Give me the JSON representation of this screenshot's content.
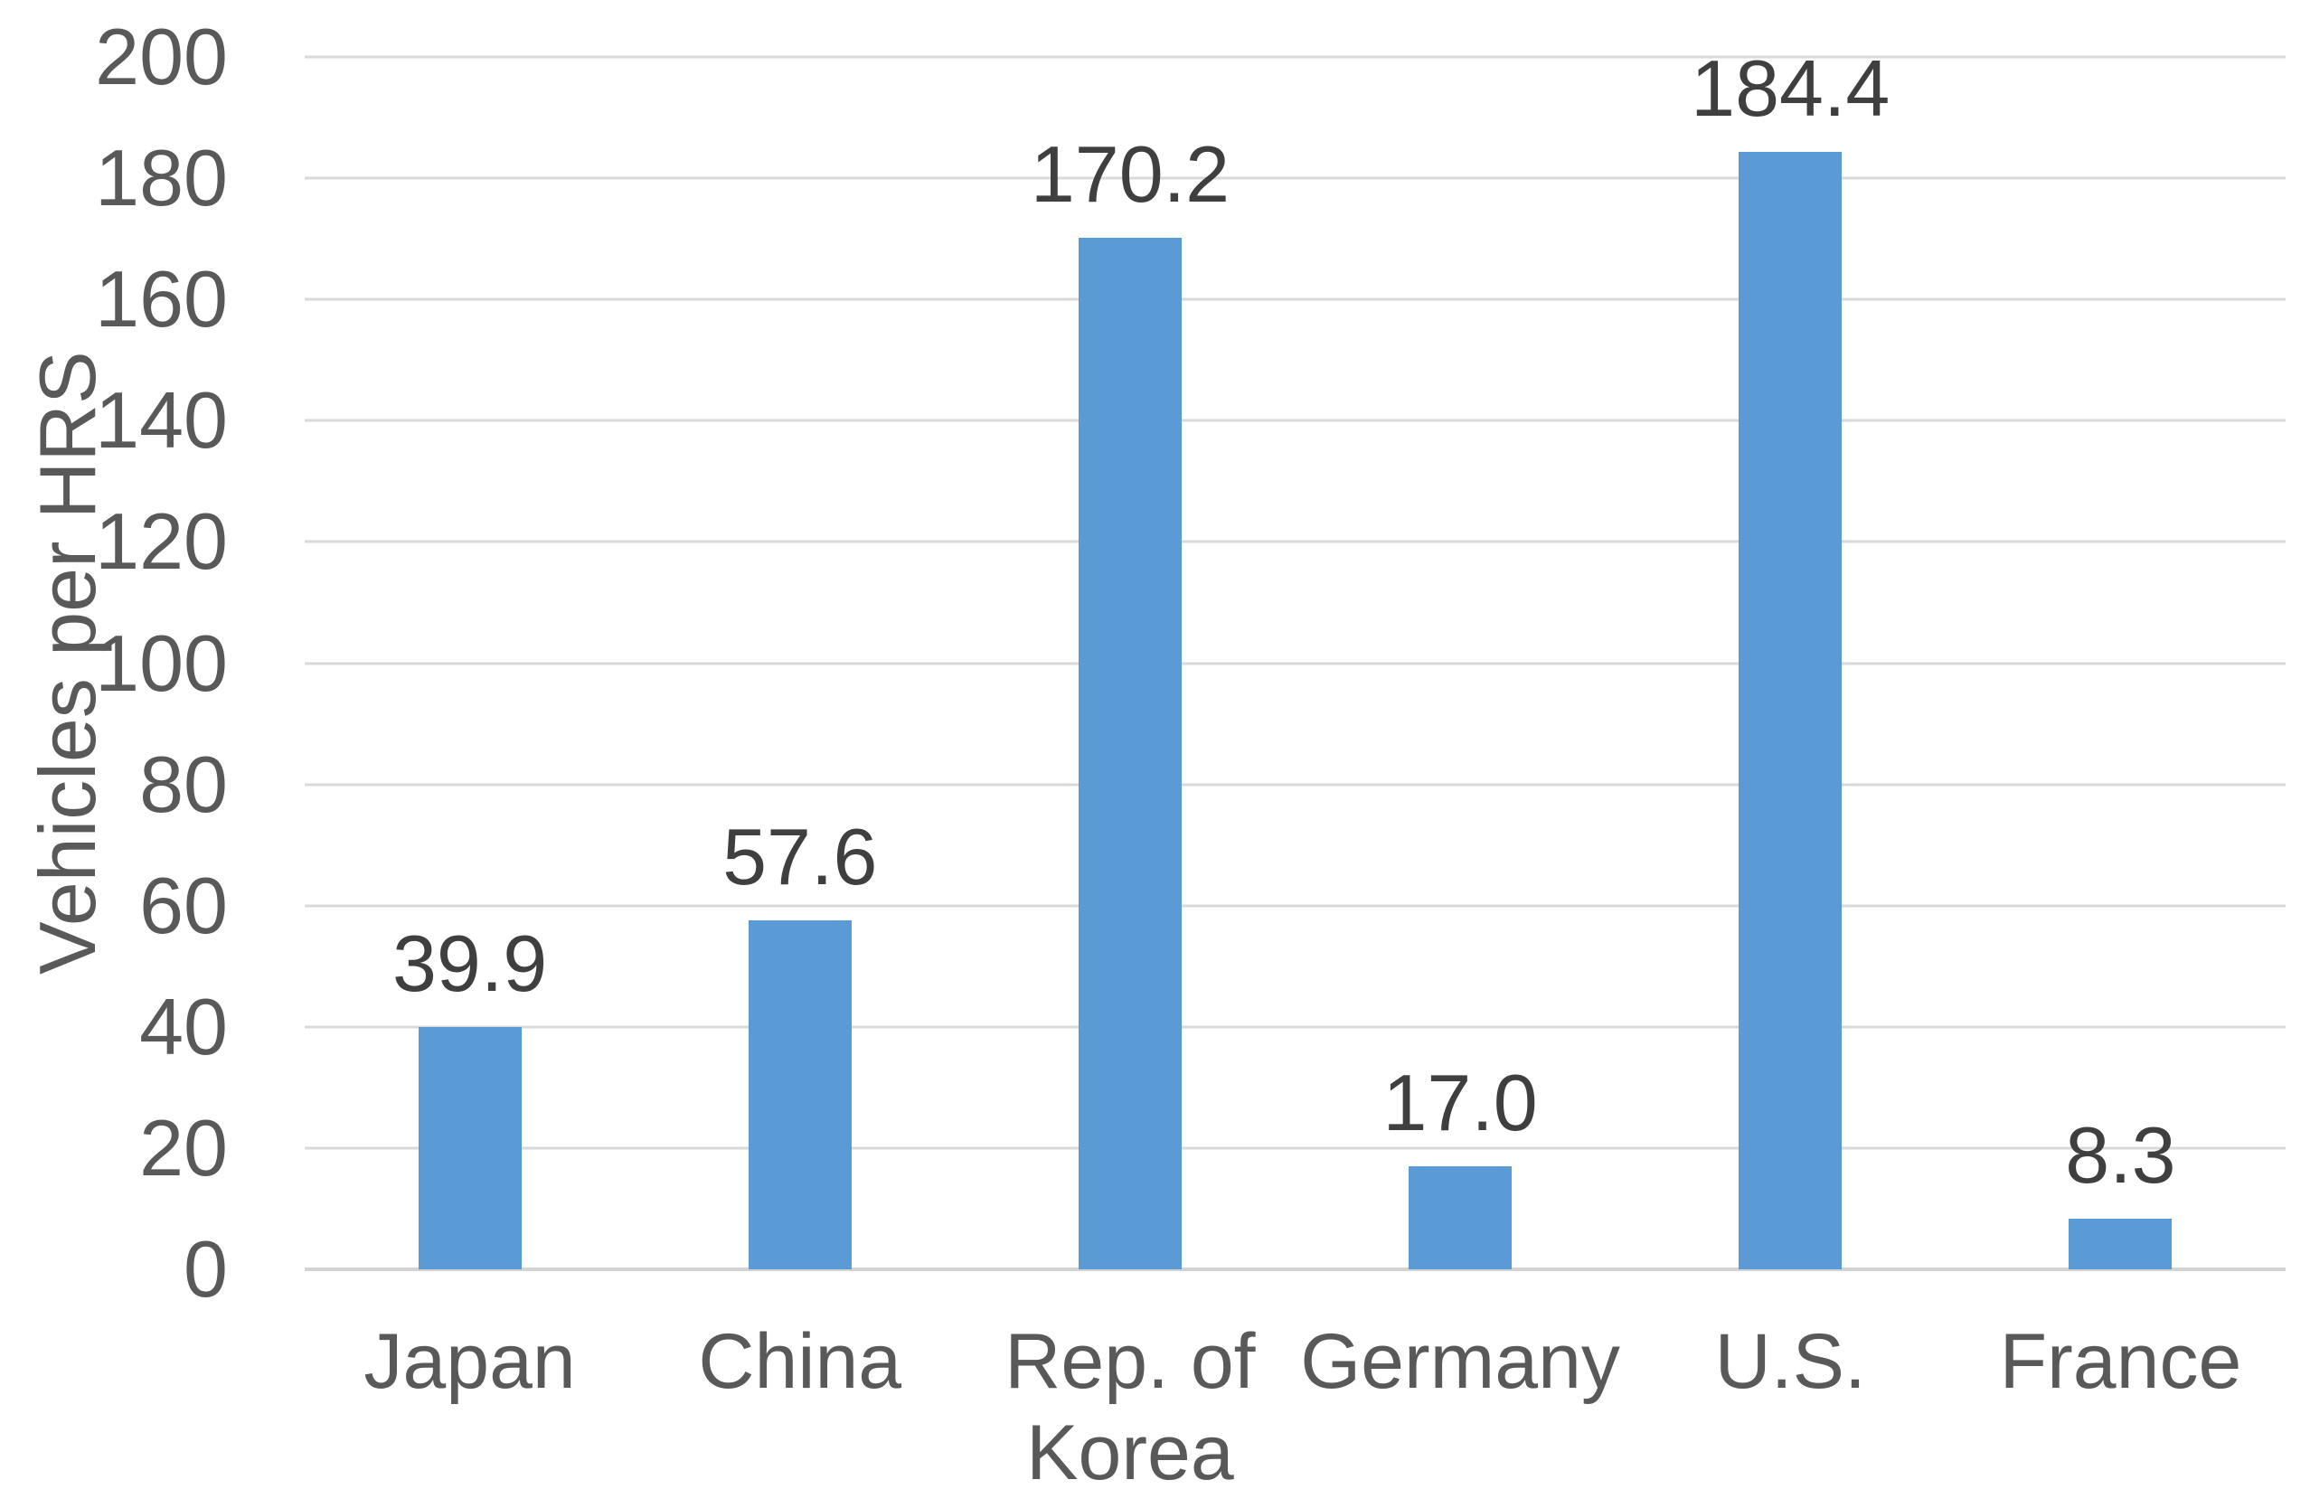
{
  "chart_data": {
    "type": "bar",
    "title": "",
    "xlabel": "",
    "ylabel": "Vehicles per HRS",
    "categories": [
      "Japan",
      "China",
      "Rep. of Korea",
      "Germany",
      "U.S.",
      "France"
    ],
    "values": [
      39.9,
      57.6,
      170.2,
      17.0,
      184.4,
      8.3
    ],
    "value_labels": [
      "39.9",
      "57.6",
      "170.2",
      "17.0",
      "184.4",
      "8.3"
    ],
    "ylim": [
      0,
      200
    ],
    "yticks": [
      0,
      20,
      40,
      60,
      80,
      100,
      120,
      140,
      160,
      180,
      200
    ],
    "grid": true,
    "legend": "none",
    "colors": {
      "bar": "#5B9BD5",
      "gridline": "#D9D9D9",
      "baseline": "#D3D3D3",
      "axis_text": "#595959",
      "data_label": "#3F3F3F",
      "background": "#FFFFFF"
    }
  }
}
